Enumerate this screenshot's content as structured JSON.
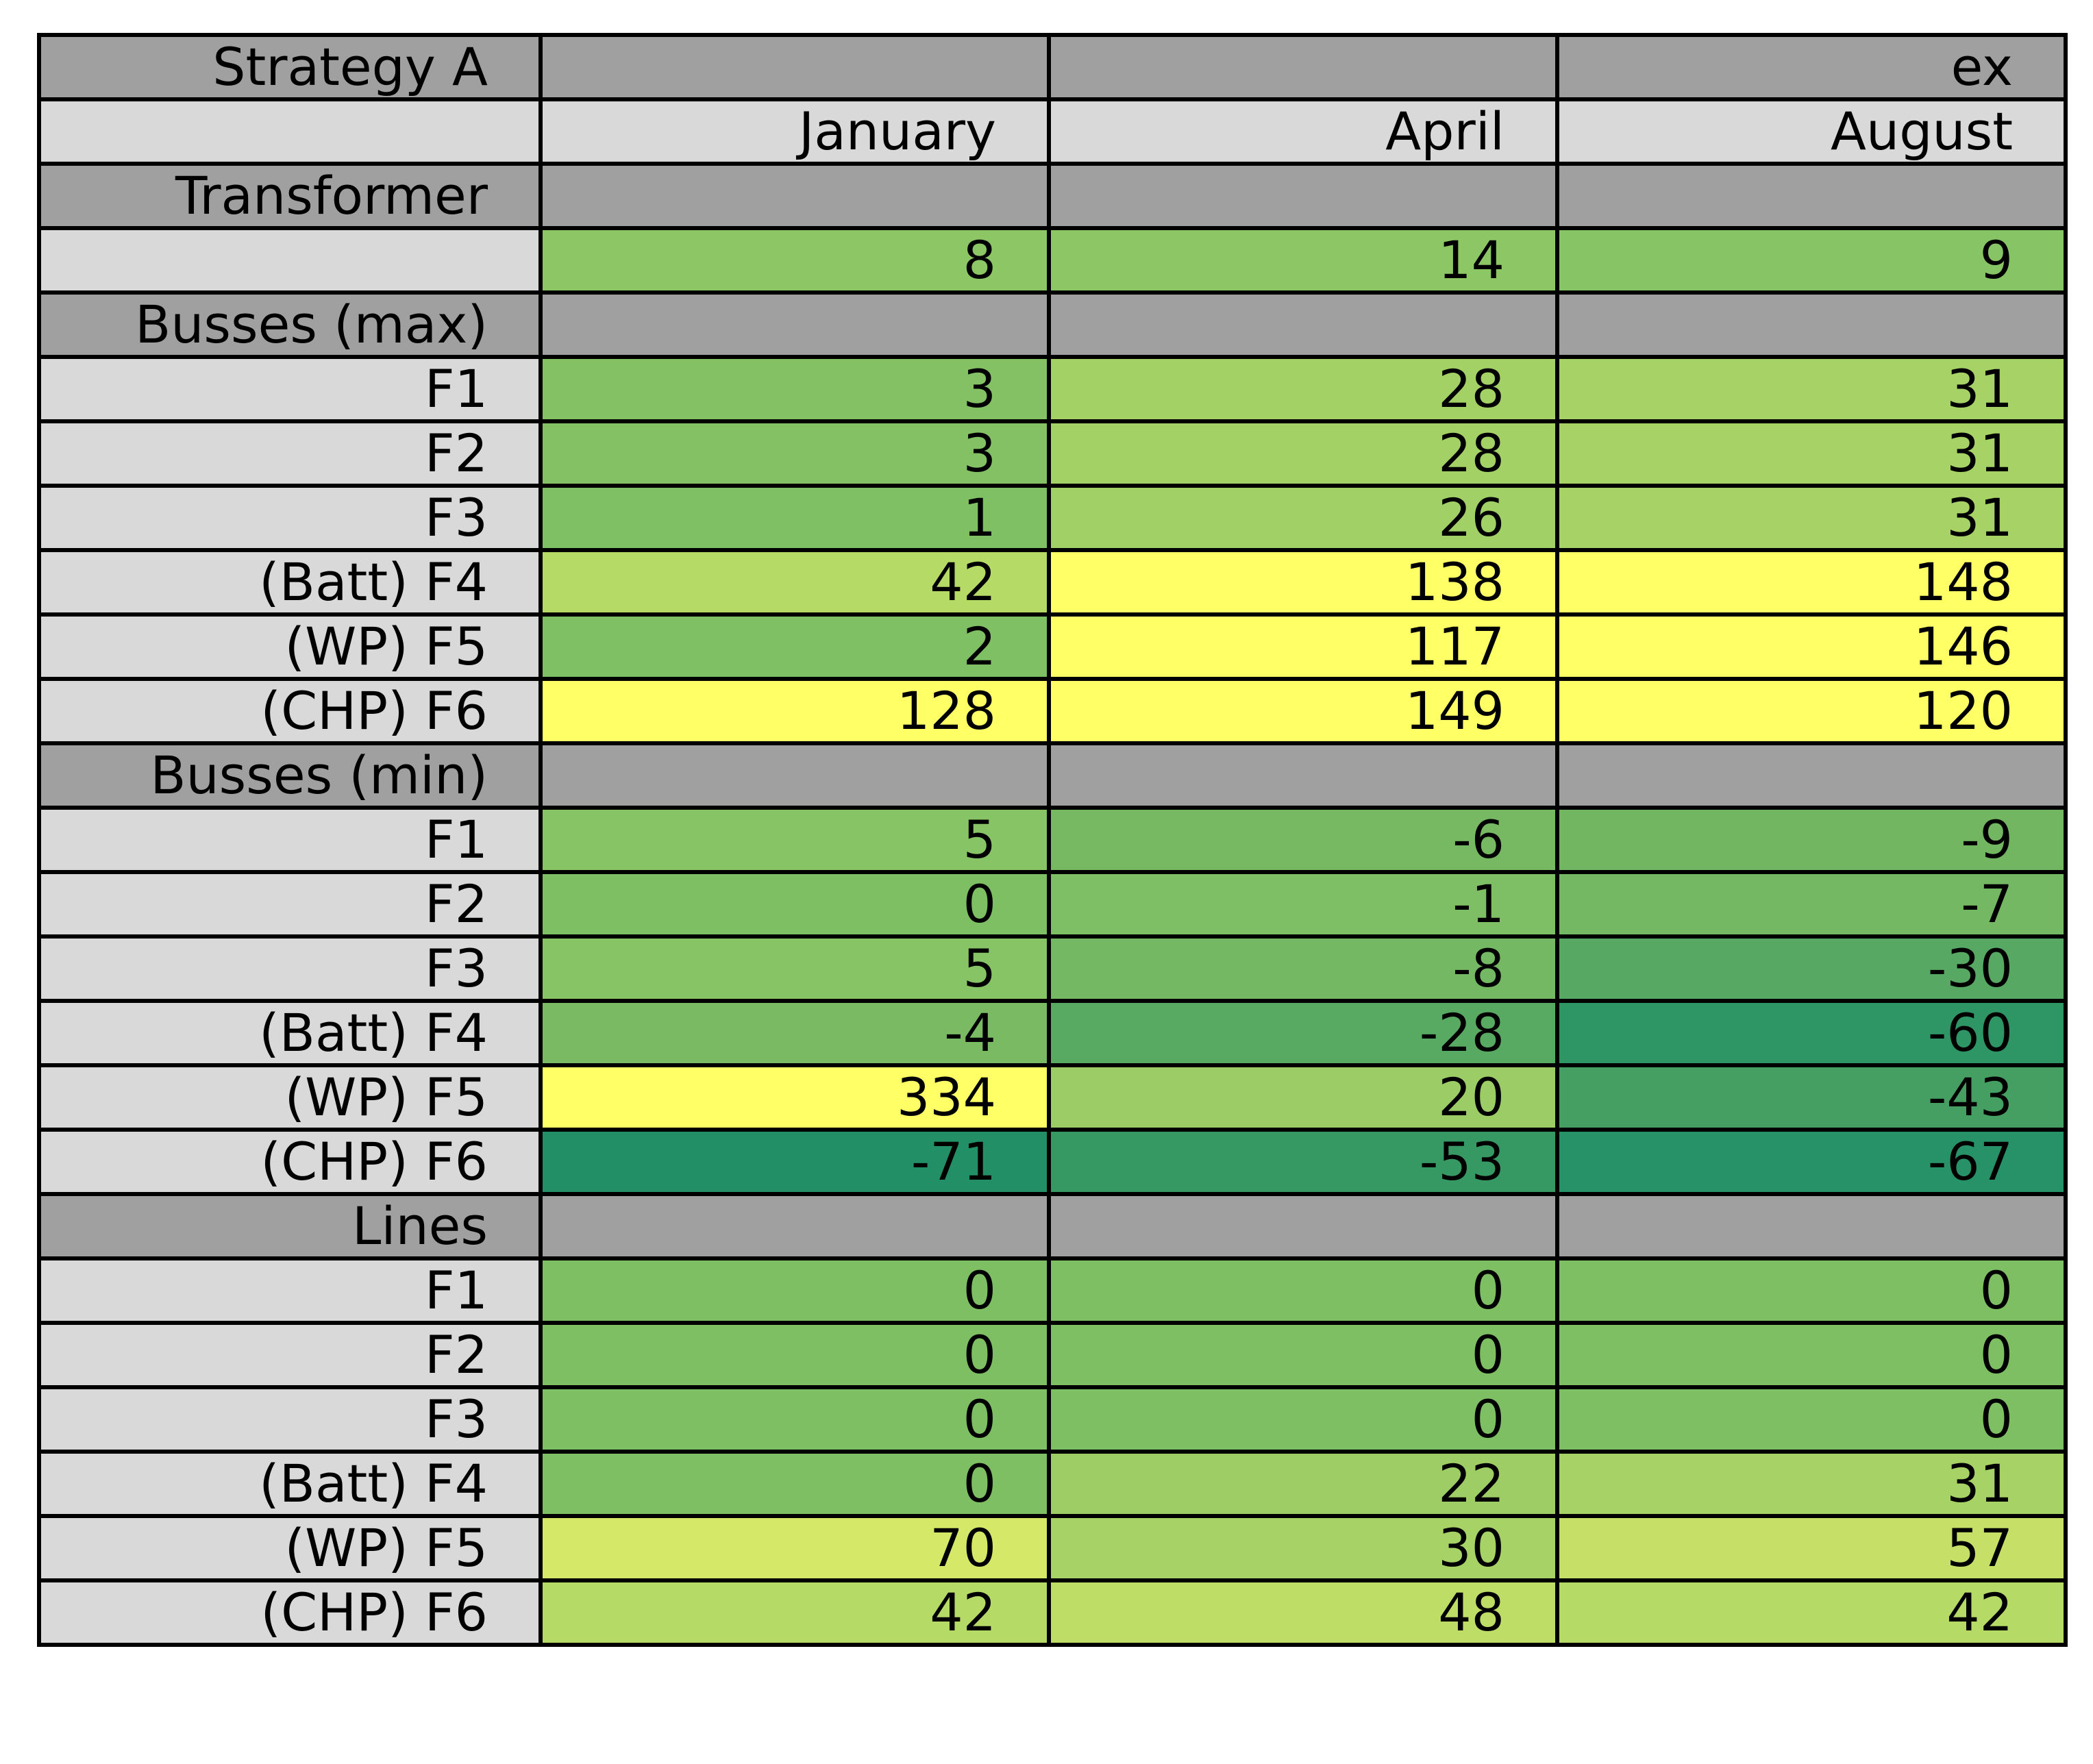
{
  "chart_data": {
    "type": "table",
    "title": "",
    "corner_label": "Strategy A",
    "super_header": [
      "",
      "",
      "ex"
    ],
    "columns": [
      "January",
      "April",
      "August"
    ],
    "sections": [
      {
        "name": "Transformer",
        "rows": [
          {
            "label": "",
            "values": [
              8,
              14,
              9
            ],
            "colors": [
              "#8cc665",
              "#8cc665",
              "#87c465"
            ]
          }
        ]
      },
      {
        "name": "Busses (max)",
        "rows": [
          {
            "label": "F1",
            "values": [
              3,
              28,
              31
            ],
            "colors": [
              "#83c164",
              "#a3d166",
              "#a6d266"
            ]
          },
          {
            "label": "F2",
            "values": [
              3,
              28,
              31
            ],
            "colors": [
              "#83c164",
              "#a3d166",
              "#a6d266"
            ]
          },
          {
            "label": "F3",
            "values": [
              1,
              26,
              31
            ],
            "colors": [
              "#80c064",
              "#a1d066",
              "#a6d266"
            ]
          },
          {
            "label": "(Batt) F4",
            "values": [
              42,
              138,
              148
            ],
            "colors": [
              "#b6da66",
              "#ffff66",
              "#ffff66"
            ]
          },
          {
            "label": "(WP) F5",
            "values": [
              2,
              117,
              146
            ],
            "colors": [
              "#80c064",
              "#ffff66",
              "#ffff66"
            ]
          },
          {
            "label": "(CHP) F6",
            "values": [
              128,
              149,
              120
            ],
            "colors": [
              "#ffff66",
              "#ffff66",
              "#ffff66"
            ]
          }
        ]
      },
      {
        "name": "Busses (min)",
        "rows": [
          {
            "label": "F1",
            "values": [
              5,
              -6,
              -9
            ],
            "colors": [
              "#87c465",
              "#77b963",
              "#73b662"
            ]
          },
          {
            "label": "F2",
            "values": [
              0,
              -1,
              -7
            ],
            "colors": [
              "#7fbf64",
              "#7ebe64",
              "#75b863"
            ]
          },
          {
            "label": "F3",
            "values": [
              5,
              -8,
              -30
            ],
            "colors": [
              "#87c465",
              "#75b863",
              "#56a862"
            ]
          },
          {
            "label": "(Batt) F4",
            "values": [
              -4,
              -28,
              -60
            ],
            "colors": [
              "#79ba63",
              "#58a962",
              "#2e9565"
            ]
          },
          {
            "label": "(WP) F5",
            "values": [
              334,
              20,
              -43
            ],
            "colors": [
              "#ffff66",
              "#9bcc66",
              "#459f63"
            ]
          },
          {
            "label": "(CHP) F6",
            "values": [
              -71,
              -53,
              -67
            ],
            "colors": [
              "#238f67",
              "#369964",
              "#279167"
            ]
          }
        ]
      },
      {
        "name": "Lines",
        "rows": [
          {
            "label": "F1",
            "values": [
              0,
              0,
              0
            ],
            "colors": [
              "#7fbf64",
              "#7fbf64",
              "#7fbf64"
            ]
          },
          {
            "label": "F2",
            "values": [
              0,
              0,
              0
            ],
            "colors": [
              "#7fbf64",
              "#7fbf64",
              "#7fbf64"
            ]
          },
          {
            "label": "F3",
            "values": [
              0,
              0,
              0
            ],
            "colors": [
              "#7fbf64",
              "#7fbf64",
              "#7fbf64"
            ]
          },
          {
            "label": "(Batt) F4",
            "values": [
              0,
              22,
              31
            ],
            "colors": [
              "#7fbf64",
              "#9ecd66",
              "#a6d266"
            ]
          },
          {
            "label": "(WP) F5",
            "values": [
              70,
              30,
              57
            ],
            "colors": [
              "#d5e868",
              "#a6d266",
              "#c6e067"
            ]
          },
          {
            "label": "(CHP) F6",
            "values": [
              42,
              48,
              42
            ],
            "colors": [
              "#b6da66",
              "#bddd66",
              "#b6da66"
            ]
          }
        ]
      }
    ],
    "colormap": "summer (green → yellow)",
    "header_color": "#a0a0a1",
    "label_color": "#d9d9d9"
  }
}
